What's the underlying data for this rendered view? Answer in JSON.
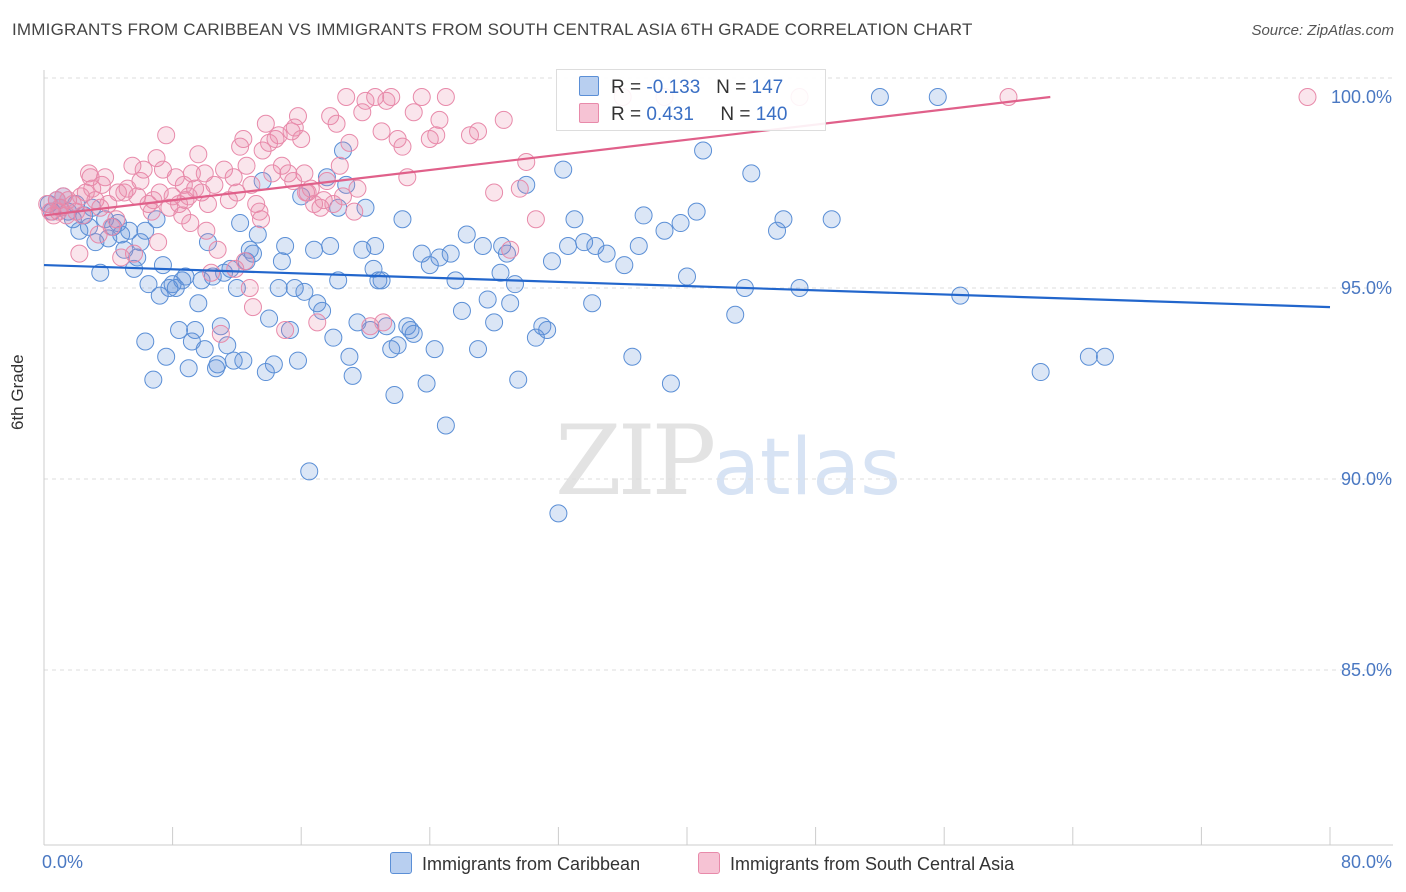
{
  "title": "IMMIGRANTS FROM CARIBBEAN VS IMMIGRANTS FROM SOUTH CENTRAL ASIA 6TH GRADE CORRELATION CHART",
  "source": "Source: ZipAtlas.com",
  "watermark": {
    "zip": "ZIP",
    "atlas": "atlas"
  },
  "colors": {
    "blue": "#5b8fd6",
    "blue_line": "#2266cc",
    "pink": "#e88aaa",
    "pink_line": "#e0608a"
  },
  "legend": {
    "r_label": "R =",
    "n_label": "N =",
    "series1": {
      "r": "-0.133",
      "n": "147"
    },
    "series2": {
      "r": "0.431",
      "n": "140"
    }
  },
  "chart_data": {
    "type": "scatter",
    "title": "IMMIGRANTS FROM CARIBBEAN VS IMMIGRANTS FROM SOUTH CENTRAL ASIA 6TH GRADE CORRELATION CHART",
    "xlabel": "",
    "ylabel": "6th Grade",
    "xlim": [
      0,
      80
    ],
    "ylim": [
      80.5,
      101.5
    ],
    "x_tick_labels": [
      "0.0%",
      "80.0%"
    ],
    "y_ticks": [
      85,
      90,
      95,
      100
    ],
    "y_tick_labels": [
      "85.0%",
      "90.0%",
      "95.0%",
      "100.0%"
    ],
    "grid": true,
    "legend_position": "top-center",
    "series": [
      {
        "name": "Immigrants from Caribbean",
        "color": "#5b8fd6",
        "r": -0.133,
        "n": 147,
        "trend": {
          "x": [
            0,
            80
          ],
          "y": [
            95.6,
            94.5
          ]
        },
        "points": [
          [
            0.3,
            97.2
          ],
          [
            0.5,
            97.0
          ],
          [
            0.8,
            97.3
          ],
          [
            1.0,
            97.1
          ],
          [
            1.2,
            97.4
          ],
          [
            1.5,
            97.0
          ],
          [
            1.8,
            96.8
          ],
          [
            2.0,
            97.2
          ],
          [
            2.2,
            96.5
          ],
          [
            2.5,
            96.9
          ],
          [
            2.8,
            96.6
          ],
          [
            3.0,
            97.1
          ],
          [
            3.2,
            96.2
          ],
          [
            3.5,
            95.4
          ],
          [
            3.8,
            96.8
          ],
          [
            4.0,
            96.3
          ],
          [
            4.3,
            96.6
          ],
          [
            4.6,
            96.7
          ],
          [
            4.8,
            96.4
          ],
          [
            5.0,
            96.0
          ],
          [
            5.3,
            96.5
          ],
          [
            5.6,
            95.5
          ],
          [
            5.8,
            95.8
          ],
          [
            6.0,
            96.2
          ],
          [
            6.3,
            96.5
          ],
          [
            6.5,
            95.1
          ],
          [
            6.8,
            92.6
          ],
          [
            7.0,
            96.8
          ],
          [
            7.2,
            94.8
          ],
          [
            7.4,
            95.6
          ],
          [
            7.6,
            93.2
          ],
          [
            7.8,
            95.0
          ],
          [
            8.0,
            95.1
          ],
          [
            8.2,
            95.0
          ],
          [
            8.4,
            93.9
          ],
          [
            8.6,
            95.2
          ],
          [
            8.8,
            95.3
          ],
          [
            9.0,
            92.9
          ],
          [
            9.2,
            93.6
          ],
          [
            9.4,
            93.9
          ],
          [
            9.6,
            94.6
          ],
          [
            9.8,
            95.2
          ],
          [
            10.0,
            93.4
          ],
          [
            10.2,
            96.2
          ],
          [
            10.5,
            95.3
          ],
          [
            10.8,
            93.0
          ],
          [
            11.0,
            94.0
          ],
          [
            11.2,
            95.4
          ],
          [
            11.4,
            93.5
          ],
          [
            11.6,
            95.5
          ],
          [
            11.8,
            93.1
          ],
          [
            12.0,
            95.0
          ],
          [
            12.2,
            96.7
          ],
          [
            12.4,
            93.1
          ],
          [
            12.6,
            95.7
          ],
          [
            12.8,
            96.0
          ],
          [
            13.0,
            95.9
          ],
          [
            13.3,
            96.4
          ],
          [
            13.6,
            97.8
          ],
          [
            13.8,
            92.8
          ],
          [
            14.0,
            94.2
          ],
          [
            14.3,
            93.0
          ],
          [
            14.6,
            95.0
          ],
          [
            14.8,
            95.7
          ],
          [
            15.0,
            96.1
          ],
          [
            15.3,
            93.9
          ],
          [
            15.6,
            95.0
          ],
          [
            15.8,
            93.1
          ],
          [
            16.0,
            97.4
          ],
          [
            16.2,
            94.9
          ],
          [
            16.5,
            90.2
          ],
          [
            16.8,
            96.0
          ],
          [
            17.0,
            94.6
          ],
          [
            17.3,
            94.4
          ],
          [
            17.6,
            97.9
          ],
          [
            17.8,
            96.1
          ],
          [
            18.0,
            93.7
          ],
          [
            18.3,
            95.2
          ],
          [
            18.6,
            98.6
          ],
          [
            18.8,
            97.7
          ],
          [
            19.0,
            93.2
          ],
          [
            19.2,
            92.7
          ],
          [
            19.5,
            94.1
          ],
          [
            19.8,
            96.0
          ],
          [
            20.0,
            97.1
          ],
          [
            20.3,
            93.9
          ],
          [
            20.6,
            96.1
          ],
          [
            20.8,
            95.2
          ],
          [
            21.0,
            95.2
          ],
          [
            21.3,
            94.0
          ],
          [
            21.6,
            93.4
          ],
          [
            21.8,
            92.2
          ],
          [
            22.0,
            93.5
          ],
          [
            22.3,
            96.8
          ],
          [
            22.6,
            94.0
          ],
          [
            22.8,
            93.9
          ],
          [
            23.0,
            93.8
          ],
          [
            23.5,
            95.9
          ],
          [
            23.8,
            92.5
          ],
          [
            24.0,
            95.6
          ],
          [
            24.3,
            93.4
          ],
          [
            24.6,
            95.8
          ],
          [
            25.0,
            91.4
          ],
          [
            25.3,
            95.9
          ],
          [
            25.6,
            95.2
          ],
          [
            26.0,
            94.4
          ],
          [
            26.3,
            96.4
          ],
          [
            27.0,
            93.4
          ],
          [
            27.3,
            96.1
          ],
          [
            27.6,
            94.7
          ],
          [
            28.0,
            94.1
          ],
          [
            28.5,
            96.1
          ],
          [
            28.8,
            95.9
          ],
          [
            29.0,
            94.6
          ],
          [
            29.3,
            95.1
          ],
          [
            29.5,
            92.6
          ],
          [
            30.0,
            97.7
          ],
          [
            30.6,
            93.7
          ],
          [
            31.0,
            94.0
          ],
          [
            31.3,
            93.9
          ],
          [
            31.6,
            95.7
          ],
          [
            32.0,
            89.1
          ],
          [
            32.3,
            98.1
          ],
          [
            32.6,
            96.1
          ],
          [
            33.0,
            96.8
          ],
          [
            33.6,
            96.2
          ],
          [
            34.3,
            96.1
          ],
          [
            35.0,
            95.9
          ],
          [
            36.6,
            93.2
          ],
          [
            37.0,
            96.1
          ],
          [
            37.3,
            96.9
          ],
          [
            38.6,
            96.5
          ],
          [
            39.0,
            92.5
          ],
          [
            39.6,
            96.7
          ],
          [
            40.0,
            95.3
          ],
          [
            40.6,
            97.0
          ],
          [
            41.0,
            98.6
          ],
          [
            43.0,
            94.3
          ],
          [
            43.6,
            95.0
          ],
          [
            44.0,
            98.0
          ],
          [
            45.6,
            96.5
          ],
          [
            46.0,
            96.8
          ],
          [
            47.0,
            95.0
          ],
          [
            49.0,
            96.8
          ],
          [
            52.0,
            100.0
          ],
          [
            55.6,
            100.0
          ],
          [
            57.0,
            94.8
          ],
          [
            62.0,
            92.8
          ],
          [
            65.0,
            93.2
          ],
          [
            66.0,
            93.2
          ],
          [
            18.3,
            97.1
          ],
          [
            20.5,
            95.5
          ],
          [
            28.4,
            95.4
          ],
          [
            34.1,
            94.6
          ],
          [
            36.1,
            95.6
          ],
          [
            6.3,
            93.6
          ],
          [
            10.7,
            92.9
          ]
        ]
      },
      {
        "name": "Immigrants from South Central Asia",
        "color": "#e88aaa",
        "r": 0.431,
        "n": 140,
        "trend": {
          "x": [
            0,
            62.6
          ],
          "y": [
            96.9,
            100.0
          ]
        },
        "points": [
          [
            0.2,
            97.2
          ],
          [
            0.4,
            97.0
          ],
          [
            0.6,
            96.9
          ],
          [
            0.8,
            97.3
          ],
          [
            1.0,
            97.1
          ],
          [
            1.2,
            97.4
          ],
          [
            1.5,
            97.3
          ],
          [
            1.8,
            97.2
          ],
          [
            2.0,
            97.0
          ],
          [
            2.2,
            95.9
          ],
          [
            2.4,
            96.9
          ],
          [
            2.6,
            97.5
          ],
          [
            2.8,
            98.0
          ],
          [
            3.0,
            97.6
          ],
          [
            3.2,
            97.3
          ],
          [
            3.5,
            97.1
          ],
          [
            3.8,
            97.9
          ],
          [
            4.0,
            97.2
          ],
          [
            4.2,
            96.6
          ],
          [
            4.5,
            96.8
          ],
          [
            4.8,
            95.8
          ],
          [
            5.0,
            97.5
          ],
          [
            5.2,
            97.6
          ],
          [
            5.5,
            98.2
          ],
          [
            5.8,
            97.4
          ],
          [
            6.0,
            97.8
          ],
          [
            6.2,
            98.1
          ],
          [
            6.5,
            97.2
          ],
          [
            6.8,
            97.3
          ],
          [
            7.0,
            98.4
          ],
          [
            7.2,
            97.5
          ],
          [
            7.4,
            98.1
          ],
          [
            7.6,
            99.0
          ],
          [
            7.8,
            97.1
          ],
          [
            8.0,
            97.4
          ],
          [
            8.2,
            97.9
          ],
          [
            8.4,
            97.2
          ],
          [
            8.6,
            96.9
          ],
          [
            8.8,
            97.3
          ],
          [
            9.0,
            97.4
          ],
          [
            9.2,
            98.0
          ],
          [
            9.4,
            97.6
          ],
          [
            9.6,
            98.5
          ],
          [
            9.8,
            97.5
          ],
          [
            10.0,
            98.0
          ],
          [
            10.2,
            97.2
          ],
          [
            10.4,
            95.4
          ],
          [
            10.6,
            97.7
          ],
          [
            10.8,
            96.0
          ],
          [
            11.0,
            93.8
          ],
          [
            11.2,
            98.1
          ],
          [
            11.5,
            97.3
          ],
          [
            11.8,
            97.9
          ],
          [
            12.0,
            97.5
          ],
          [
            12.2,
            98.7
          ],
          [
            12.4,
            98.9
          ],
          [
            12.6,
            98.2
          ],
          [
            12.8,
            95.0
          ],
          [
            13.0,
            94.5
          ],
          [
            13.2,
            97.2
          ],
          [
            13.4,
            97.0
          ],
          [
            13.6,
            98.6
          ],
          [
            13.8,
            99.3
          ],
          [
            14.0,
            98.8
          ],
          [
            14.2,
            98.0
          ],
          [
            14.4,
            98.9
          ],
          [
            14.6,
            99.0
          ],
          [
            14.8,
            98.2
          ],
          [
            15.0,
            93.9
          ],
          [
            15.2,
            98.0
          ],
          [
            15.4,
            99.1
          ],
          [
            15.6,
            99.2
          ],
          [
            15.8,
            99.5
          ],
          [
            16.0,
            98.9
          ],
          [
            16.2,
            98.0
          ],
          [
            16.4,
            97.5
          ],
          [
            16.6,
            97.6
          ],
          [
            16.8,
            97.2
          ],
          [
            17.0,
            94.1
          ],
          [
            17.2,
            97.1
          ],
          [
            17.4,
            97.3
          ],
          [
            17.6,
            97.8
          ],
          [
            17.8,
            99.5
          ],
          [
            18.0,
            97.2
          ],
          [
            18.2,
            99.3
          ],
          [
            18.4,
            98.2
          ],
          [
            18.6,
            97.4
          ],
          [
            18.8,
            100.0
          ],
          [
            19.0,
            98.8
          ],
          [
            19.5,
            97.6
          ],
          [
            19.8,
            99.6
          ],
          [
            20.0,
            99.9
          ],
          [
            20.3,
            94.0
          ],
          [
            20.6,
            100.0
          ],
          [
            21.0,
            99.1
          ],
          [
            21.3,
            99.9
          ],
          [
            21.6,
            100.0
          ],
          [
            22.0,
            98.9
          ],
          [
            22.3,
            98.7
          ],
          [
            22.6,
            97.9
          ],
          [
            23.0,
            99.6
          ],
          [
            23.5,
            100.0
          ],
          [
            24.0,
            98.9
          ],
          [
            24.6,
            99.4
          ],
          [
            25.0,
            100.0
          ],
          [
            27.0,
            99.1
          ],
          [
            28.0,
            97.5
          ],
          [
            28.6,
            99.4
          ],
          [
            29.0,
            96.0
          ],
          [
            29.6,
            97.6
          ],
          [
            30.0,
            98.3
          ],
          [
            30.6,
            96.8
          ],
          [
            36.0,
            100.0
          ],
          [
            38.6,
            100.0
          ],
          [
            47.0,
            100.0
          ],
          [
            60.0,
            100.0
          ],
          [
            78.6,
            100.0
          ],
          [
            15.5,
            97.8
          ],
          [
            24.4,
            99.0
          ],
          [
            26.5,
            99.0
          ],
          [
            3.4,
            96.4
          ],
          [
            5.6,
            95.9
          ],
          [
            7.1,
            96.2
          ],
          [
            9.1,
            96.7
          ],
          [
            11.9,
            95.5
          ],
          [
            13.5,
            96.8
          ],
          [
            12.5,
            95.7
          ],
          [
            8.7,
            97.7
          ],
          [
            6.7,
            97.0
          ],
          [
            2.3,
            97.4
          ],
          [
            4.6,
            97.5
          ],
          [
            1.4,
            96.9
          ],
          [
            2.9,
            97.9
          ],
          [
            10.1,
            96.5
          ],
          [
            16.3,
            97.5
          ],
          [
            19.3,
            97.0
          ],
          [
            21.1,
            94.1
          ],
          [
            12.9,
            97.7
          ],
          [
            0.9,
            97.0
          ],
          [
            3.6,
            97.7
          ]
        ]
      }
    ]
  },
  "bottom_legend": {
    "series1": "Immigrants from Caribbean",
    "series2": "Immigrants from South Central Asia"
  },
  "axis_labels": {
    "y": "6th Grade",
    "x_min": "0.0%",
    "x_max": "80.0%",
    "y_ticks": [
      "100.0%",
      "95.0%",
      "90.0%",
      "85.0%"
    ]
  }
}
